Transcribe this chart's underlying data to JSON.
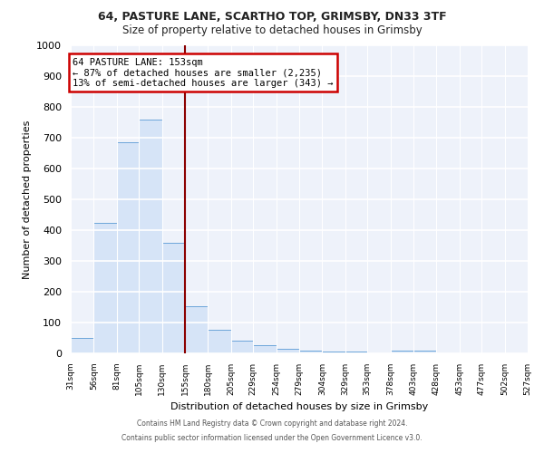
{
  "title1": "64, PASTURE LANE, SCARTHO TOP, GRIMSBY, DN33 3TF",
  "title2": "Size of property relative to detached houses in Grimsby",
  "xlabel": "Distribution of detached houses by size in Grimsby",
  "ylabel": "Number of detached properties",
  "property_line_x": 155,
  "bin_edges": [
    31,
    56,
    81,
    105,
    130,
    155,
    180,
    205,
    229,
    254,
    279,
    304,
    329,
    353,
    378,
    403,
    428,
    453,
    477,
    502,
    527
  ],
  "bar_heights": [
    50,
    425,
    685,
    760,
    360,
    153,
    77,
    40,
    27,
    15,
    10,
    7,
    5,
    0,
    8,
    8,
    0,
    0,
    0,
    0
  ],
  "bar_color": "#d6e4f7",
  "bar_edge_color": "#5b9bd5",
  "line_color": "#8b0000",
  "annotation_text": "64 PASTURE LANE: 153sqm\n← 87% of detached houses are smaller (2,235)\n13% of semi-detached houses are larger (343) →",
  "annotation_box_color": "white",
  "annotation_border_color": "#cc0000",
  "ylim": [
    0,
    1000
  ],
  "footer1": "Contains HM Land Registry data © Crown copyright and database right 2024.",
  "footer2": "Contains public sector information licensed under the Open Government Licence v3.0.",
  "tick_labels": [
    "31sqm",
    "56sqm",
    "81sqm",
    "105sqm",
    "130sqm",
    "155sqm",
    "180sqm",
    "205sqm",
    "229sqm",
    "254sqm",
    "279sqm",
    "304sqm",
    "329sqm",
    "353sqm",
    "378sqm",
    "403sqm",
    "428sqm",
    "453sqm",
    "477sqm",
    "502sqm",
    "527sqm"
  ],
  "yticks": [
    0,
    100,
    200,
    300,
    400,
    500,
    600,
    700,
    800,
    900,
    1000
  ],
  "background_color": "#eef2fa",
  "fig_background": "#ffffff",
  "grid_color": "#ffffff"
}
